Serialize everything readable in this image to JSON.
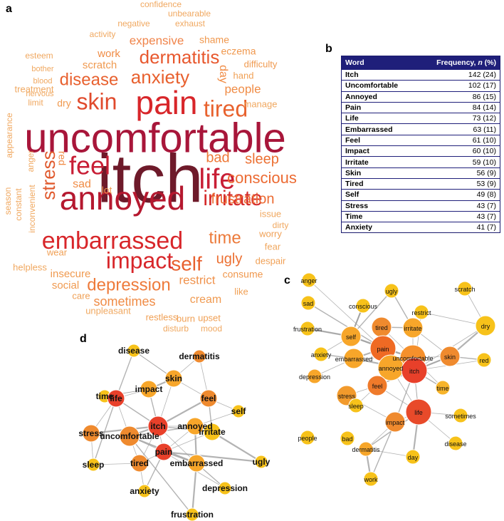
{
  "panels": {
    "a": "a",
    "b": "b",
    "c": "c",
    "d": "d"
  },
  "table": {
    "header_word": "Word",
    "header_freq": "Frequency, n (%)",
    "rows": [
      {
        "word": "Itch",
        "freq": "142 (24)"
      },
      {
        "word": "Uncomfortable",
        "freq": "102 (17)"
      },
      {
        "word": "Annoyed",
        "freq": "86 (15)"
      },
      {
        "word": "Pain",
        "freq": "84 (14)"
      },
      {
        "word": "Life",
        "freq": "73 (12)"
      },
      {
        "word": "Embarrassed",
        "freq": "63 (11)"
      },
      {
        "word": "Feel",
        "freq": "61 (10)"
      },
      {
        "word": "Impact",
        "freq": "60 (10)"
      },
      {
        "word": "Irritate",
        "freq": "59 (10)"
      },
      {
        "word": "Skin",
        "freq": "56 (9)"
      },
      {
        "word": "Tired",
        "freq": "53 (9)"
      },
      {
        "word": "Self",
        "freq": "49 (8)"
      },
      {
        "word": "Stress",
        "freq": "43 (7)"
      },
      {
        "word": "Time",
        "freq": "43 (7)"
      },
      {
        "word": "Anxiety",
        "freq": "41 (7)"
      }
    ]
  },
  "wordcloud": [
    {
      "text": "itch",
      "weight": 142,
      "color": "#6e1a2a"
    },
    {
      "text": "uncomfortable",
      "weight": 102,
      "color": "#a8163a"
    },
    {
      "text": "annoyed",
      "weight": 86,
      "color": "#b5182f"
    },
    {
      "text": "pain",
      "weight": 84,
      "color": "#d8262a"
    },
    {
      "text": "life",
      "weight": 73,
      "color": "#c81e35"
    },
    {
      "text": "embarrassed",
      "weight": 63,
      "color": "#d8262a"
    },
    {
      "text": "feel",
      "weight": 61,
      "color": "#c81e35"
    },
    {
      "text": "impact",
      "weight": 60,
      "color": "#d8262a"
    },
    {
      "text": "irritate",
      "weight": 59,
      "color": "#d42a2a"
    },
    {
      "text": "skin",
      "weight": 56,
      "color": "#e04a2c"
    },
    {
      "text": "tired",
      "weight": 53,
      "color": "#e8622e"
    },
    {
      "text": "self",
      "weight": 49,
      "color": "#e8602e"
    },
    {
      "text": "stress",
      "weight": 43,
      "color": "#e05a2e"
    },
    {
      "text": "time",
      "weight": 43,
      "color": "#ec7a3a"
    },
    {
      "text": "anxiety",
      "weight": 41,
      "color": "#e8602e"
    },
    {
      "text": "depression",
      "weight": 40,
      "color": "#ee7a3a"
    },
    {
      "text": "dermatitis",
      "weight": 38,
      "color": "#e8582e"
    },
    {
      "text": "disease",
      "weight": 34,
      "color": "#e8602e"
    },
    {
      "text": "conscious",
      "weight": 31,
      "color": "#ec6a32"
    },
    {
      "text": "frustration",
      "weight": 30,
      "color": "#ec6a32"
    },
    {
      "text": "sleep",
      "weight": 29,
      "color": "#ec7032"
    },
    {
      "text": "bad",
      "weight": 26,
      "color": "#ee7a3a"
    },
    {
      "text": "ugly",
      "weight": 25,
      "color": "#ec7032"
    },
    {
      "text": "sometimes",
      "weight": 24,
      "color": "#f08c46"
    },
    {
      "text": "expensive",
      "weight": 23,
      "color": "#f0844a"
    },
    {
      "text": "people",
      "weight": 22,
      "color": "#f08c46"
    },
    {
      "text": "restrict",
      "weight": 21,
      "color": "#f0924c"
    },
    {
      "text": "sad",
      "weight": 20,
      "color": "#f08c46"
    },
    {
      "text": "consume",
      "weight": 19,
      "color": "#f0984e"
    },
    {
      "text": "cream",
      "weight": 19,
      "color": "#f09a50"
    },
    {
      "text": "work",
      "weight": 19,
      "color": "#f08c46"
    },
    {
      "text": "social",
      "weight": 18,
      "color": "#f09a50"
    },
    {
      "text": "insecure",
      "weight": 18,
      "color": "#f09a50"
    },
    {
      "text": "day",
      "weight": 18,
      "color": "#f08c46"
    },
    {
      "text": "red",
      "weight": 17,
      "color": "#f08c46"
    },
    {
      "text": "scratch",
      "weight": 17,
      "color": "#f09a50"
    },
    {
      "text": "shame",
      "weight": 17,
      "color": "#f0984e"
    },
    {
      "text": "eczema",
      "weight": 16,
      "color": "#f0984e"
    },
    {
      "text": "difficulty",
      "weight": 16,
      "color": "#f09a50"
    },
    {
      "text": "hand",
      "weight": 15,
      "color": "#f0a055"
    },
    {
      "text": "lot",
      "weight": 15,
      "color": "#f09a50"
    },
    {
      "text": "dry",
      "weight": 15,
      "color": "#f09a50"
    },
    {
      "text": "like",
      "weight": 15,
      "color": "#f0a055"
    },
    {
      "text": "wear",
      "weight": 15,
      "color": "#f0a055"
    },
    {
      "text": "care",
      "weight": 14,
      "color": "#f0a055"
    },
    {
      "text": "restless",
      "weight": 14,
      "color": "#f0a055"
    },
    {
      "text": "upset",
      "weight": 14,
      "color": "#f0a055"
    },
    {
      "text": "burn",
      "weight": 14,
      "color": "#f0a055"
    },
    {
      "text": "worry",
      "weight": 14,
      "color": "#f0a055"
    },
    {
      "text": "fear",
      "weight": 13,
      "color": "#f0a860"
    },
    {
      "text": "despair",
      "weight": 14,
      "color": "#f0a055"
    },
    {
      "text": "issue",
      "weight": 13,
      "color": "#f0a860"
    },
    {
      "text": "dirty",
      "weight": 13,
      "color": "#f0a860"
    },
    {
      "text": "manage",
      "weight": 13,
      "color": "#f0a860"
    },
    {
      "text": "treatment",
      "weight": 13,
      "color": "#f0a860"
    },
    {
      "text": "limit",
      "weight": 13,
      "color": "#f0a860"
    },
    {
      "text": "anger",
      "weight": 13,
      "color": "#f0a860"
    },
    {
      "text": "activity",
      "weight": 13,
      "color": "#f0a860"
    },
    {
      "text": "esteem",
      "weight": 13,
      "color": "#f0a860"
    },
    {
      "text": "bother",
      "weight": 12,
      "color": "#f0a860"
    },
    {
      "text": "blood",
      "weight": 12,
      "color": "#f0a860"
    },
    {
      "text": "nervous",
      "weight": 12,
      "color": "#f0a860"
    },
    {
      "text": "negative",
      "weight": 12,
      "color": "#f0a860"
    },
    {
      "text": "exhaust",
      "weight": 12,
      "color": "#f0a860"
    },
    {
      "text": "unbearable",
      "weight": 12,
      "color": "#f0a860"
    },
    {
      "text": "confidence",
      "weight": 12,
      "color": "#f0a860"
    },
    {
      "text": "appearance",
      "weight": 12,
      "color": "#f0a860"
    },
    {
      "text": "season",
      "weight": 12,
      "color": "#f0a860"
    },
    {
      "text": "constant",
      "weight": 12,
      "color": "#f0a860"
    },
    {
      "text": "inconvenient",
      "weight": 12,
      "color": "#f0a860"
    },
    {
      "text": "helpless",
      "weight": 13,
      "color": "#f0a860"
    },
    {
      "text": "unpleasant",
      "weight": 13,
      "color": "#f0a860"
    },
    {
      "text": "disturb",
      "weight": 12,
      "color": "#f0a860"
    },
    {
      "text": "mood",
      "weight": 12,
      "color": "#f0a860"
    }
  ],
  "network_c": {
    "nodes": [
      "anger",
      "ugly",
      "scratch",
      "sad",
      "conscious",
      "restrict",
      "frustration",
      "tired",
      "irritate",
      "dry",
      "self",
      "pain",
      "anxiety",
      "uncomfortable",
      "embarrassed",
      "skin",
      "red",
      "annoyed",
      "depression",
      "itch",
      "feel",
      "time",
      "stress",
      "sleep",
      "life",
      "sometimes",
      "people",
      "impact",
      "bad",
      "disease",
      "dermatitis",
      "day",
      "work"
    ],
    "sizes": [
      1,
      1,
      1,
      1,
      1,
      1,
      1,
      2,
      2,
      2,
      2,
      3,
      1,
      3,
      2,
      2,
      1,
      3,
      1,
      3,
      2,
      1,
      2,
      1,
      3,
      1,
      1,
      2,
      1,
      1,
      1,
      1,
      1
    ],
    "colors": [
      "#f7c21a",
      "#f7c21a",
      "#f7c21a",
      "#f7c21a",
      "#f7c21a",
      "#f7c21a",
      "#f7c21a",
      "#ef8a2e",
      "#f7a62a",
      "#f7c21a",
      "#f7a62a",
      "#ef6a24",
      "#f7c21a",
      "#f5902c",
      "#f7a62a",
      "#ef8a2e",
      "#f7c21a",
      "#f7a62a",
      "#f7a62a",
      "#e8402a",
      "#ef7a2a",
      "#f7b42a",
      "#f29a2c",
      "#f7c21a",
      "#e84a2a",
      "#f7c21a",
      "#f7c21a",
      "#ef8a2e",
      "#f7c21a",
      "#f7c21a",
      "#f7a62a",
      "#f7c21a",
      "#f7c21a"
    ],
    "edges": [
      [
        19,
        13
      ],
      [
        19,
        17
      ],
      [
        19,
        11
      ],
      [
        19,
        20
      ],
      [
        19,
        24
      ],
      [
        19,
        15
      ],
      [
        19,
        27
      ],
      [
        19,
        9
      ],
      [
        19,
        16
      ],
      [
        19,
        21
      ],
      [
        19,
        14
      ],
      [
        13,
        17
      ],
      [
        13,
        11
      ],
      [
        13,
        7
      ],
      [
        13,
        8
      ],
      [
        13,
        10
      ],
      [
        13,
        14
      ],
      [
        13,
        15
      ],
      [
        13,
        20
      ],
      [
        13,
        24
      ],
      [
        17,
        11
      ],
      [
        17,
        20
      ],
      [
        17,
        24
      ],
      [
        11,
        7
      ],
      [
        11,
        10
      ],
      [
        11,
        14
      ],
      [
        24,
        27
      ],
      [
        24,
        30
      ],
      [
        24,
        29
      ],
      [
        24,
        25
      ],
      [
        24,
        31
      ],
      [
        24,
        20
      ],
      [
        27,
        30
      ],
      [
        27,
        32
      ],
      [
        27,
        22
      ],
      [
        15,
        9
      ],
      [
        15,
        16
      ],
      [
        15,
        20
      ],
      [
        15,
        8
      ],
      [
        10,
        4
      ],
      [
        10,
        6
      ],
      [
        10,
        12
      ],
      [
        7,
        8
      ],
      [
        20,
        22
      ],
      [
        20,
        23
      ],
      [
        22,
        23
      ],
      [
        9,
        2
      ],
      [
        9,
        5
      ],
      [
        8,
        1
      ],
      [
        6,
        10
      ],
      [
        4,
        10
      ],
      [
        12,
        14
      ],
      [
        18,
        14
      ],
      [
        0,
        11
      ],
      [
        3,
        11
      ],
      [
        30,
        32
      ],
      [
        30,
        31
      ],
      [
        1,
        10
      ],
      [
        5,
        19
      ],
      [
        21,
        13
      ]
    ]
  },
  "network_d": {
    "nodes": [
      "disease",
      "dermatitis",
      "time",
      "impact",
      "skin",
      "life",
      "feel",
      "self",
      "annoyed",
      "itch",
      "irritate",
      "stress",
      "uncomfortable",
      "pain",
      "ugly",
      "sleep",
      "tired",
      "embarrassed",
      "anxiety",
      "depression",
      "frustration"
    ],
    "sizes": [
      1,
      1,
      1,
      2,
      2,
      2,
      2,
      1,
      2,
      3,
      2,
      2,
      3,
      2,
      1,
      1,
      2,
      2,
      1,
      1,
      1
    ],
    "colors": [
      "#f7c21a",
      "#ef8a2e",
      "#f7c21a",
      "#f7a62a",
      "#f7a62a",
      "#e8402a",
      "#ef8a2e",
      "#f7c21a",
      "#f7a62a",
      "#e8402a",
      "#f7c21a",
      "#ef8a2e",
      "#ef8a2e",
      "#e8402a",
      "#f7c21a",
      "#f7c21a",
      "#ef8a2e",
      "#f7a62a",
      "#f7c21a",
      "#f7c21a",
      "#f7c21a"
    ],
    "edges": [
      [
        9,
        12
      ],
      [
        9,
        13
      ],
      [
        9,
        8
      ],
      [
        9,
        5
      ],
      [
        9,
        4
      ],
      [
        9,
        6
      ],
      [
        9,
        3
      ],
      [
        9,
        16
      ],
      [
        9,
        17
      ],
      [
        9,
        10
      ],
      [
        9,
        11
      ],
      [
        12,
        13
      ],
      [
        12,
        8
      ],
      [
        12,
        5
      ],
      [
        12,
        16
      ],
      [
        12,
        17
      ],
      [
        13,
        8
      ],
      [
        13,
        16
      ],
      [
        13,
        17
      ],
      [
        13,
        10
      ],
      [
        13,
        14
      ],
      [
        13,
        18
      ],
      [
        13,
        19
      ],
      [
        5,
        3
      ],
      [
        5,
        0
      ],
      [
        5,
        2
      ],
      [
        5,
        11
      ],
      [
        5,
        15
      ],
      [
        4,
        1
      ],
      [
        4,
        6
      ],
      [
        4,
        3
      ],
      [
        4,
        0
      ],
      [
        6,
        7
      ],
      [
        6,
        10
      ],
      [
        3,
        2
      ],
      [
        8,
        17
      ],
      [
        8,
        10
      ],
      [
        16,
        15
      ],
      [
        16,
        18
      ],
      [
        17,
        19
      ],
      [
        17,
        20
      ],
      [
        11,
        15
      ],
      [
        12,
        20
      ],
      [
        0,
        4
      ],
      [
        1,
        6
      ],
      [
        10,
        14
      ],
      [
        7,
        8
      ],
      [
        2,
        3
      ]
    ]
  }
}
